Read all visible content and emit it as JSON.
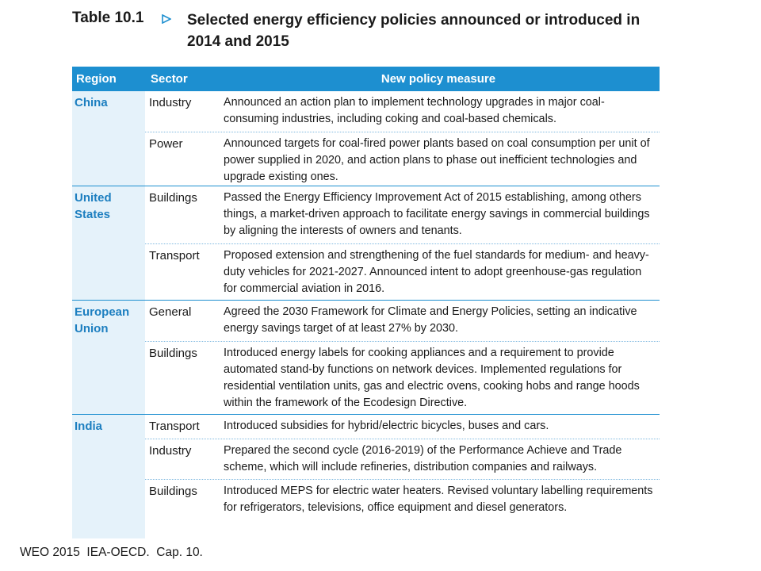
{
  "table_number": "Table 10.1",
  "table_title": "Selected energy efficiency policies announced or introduced in 2014 and 2015",
  "headers": {
    "region": "Region",
    "sector": "Sector",
    "measure": "New policy measure"
  },
  "rows": [
    {
      "region": "China",
      "entries": [
        {
          "sector": "Industry",
          "measure": "Announced an action plan to implement technology upgrades in major coal-consuming industries, including coking and coal-based chemicals."
        },
        {
          "sector": "Power",
          "measure": "Announced targets for coal-fired power plants based on coal consumption per unit of power supplied in 2020, and action plans to phase out inefficient technologies and upgrade existing ones."
        }
      ]
    },
    {
      "region": "United States",
      "entries": [
        {
          "sector": "Buildings",
          "measure": "Passed the Energy Efficiency Improvement Act of 2015 establishing, among others things, a market-driven approach to facilitate energy savings in commercial buildings by aligning the interests of owners and tenants."
        },
        {
          "sector": "Transport",
          "measure": "Proposed extension and strengthening of the fuel standards for medium- and heavy-duty vehicles for 2021-2027. Announced intent to adopt greenhouse-gas regulation for commercial aviation in 2016."
        }
      ]
    },
    {
      "region": "European Union",
      "entries": [
        {
          "sector": "General",
          "measure": "Agreed the 2030 Framework for Climate and Energy Policies, setting an indicative energy savings target of at least 27% by 2030."
        },
        {
          "sector": "Buildings",
          "measure": "Introduced energy labels for cooking appliances and a requirement to provide automated stand-by functions on network devices. Implemented regulations for residential ventilation units, gas and electric ovens, cooking hobs and range hoods within the framework of the Ecodesign Directive."
        }
      ]
    },
    {
      "region": "India",
      "entries": [
        {
          "sector": "Transport",
          "measure": "Introduced subsidies for hybrid/electric bicycles, buses and cars."
        },
        {
          "sector": "Industry",
          "measure": "Prepared the second cycle (2016-2019) of the Performance Achieve and Trade scheme, which will include refineries, distribution companies and railways."
        },
        {
          "sector": "Buildings",
          "measure": "Introduced MEPS for electric water heaters. Revised voluntary labelling requirements for refrigerators, televisions, office equipment and diesel generators."
        }
      ]
    }
  ],
  "caption": "WEO 2015  IEA-OECD.  Cap. 10.",
  "colors": {
    "header_bg": "#1d8fd0",
    "region_text": "#1d7fc0",
    "region_bg": "#e5f2fa"
  }
}
